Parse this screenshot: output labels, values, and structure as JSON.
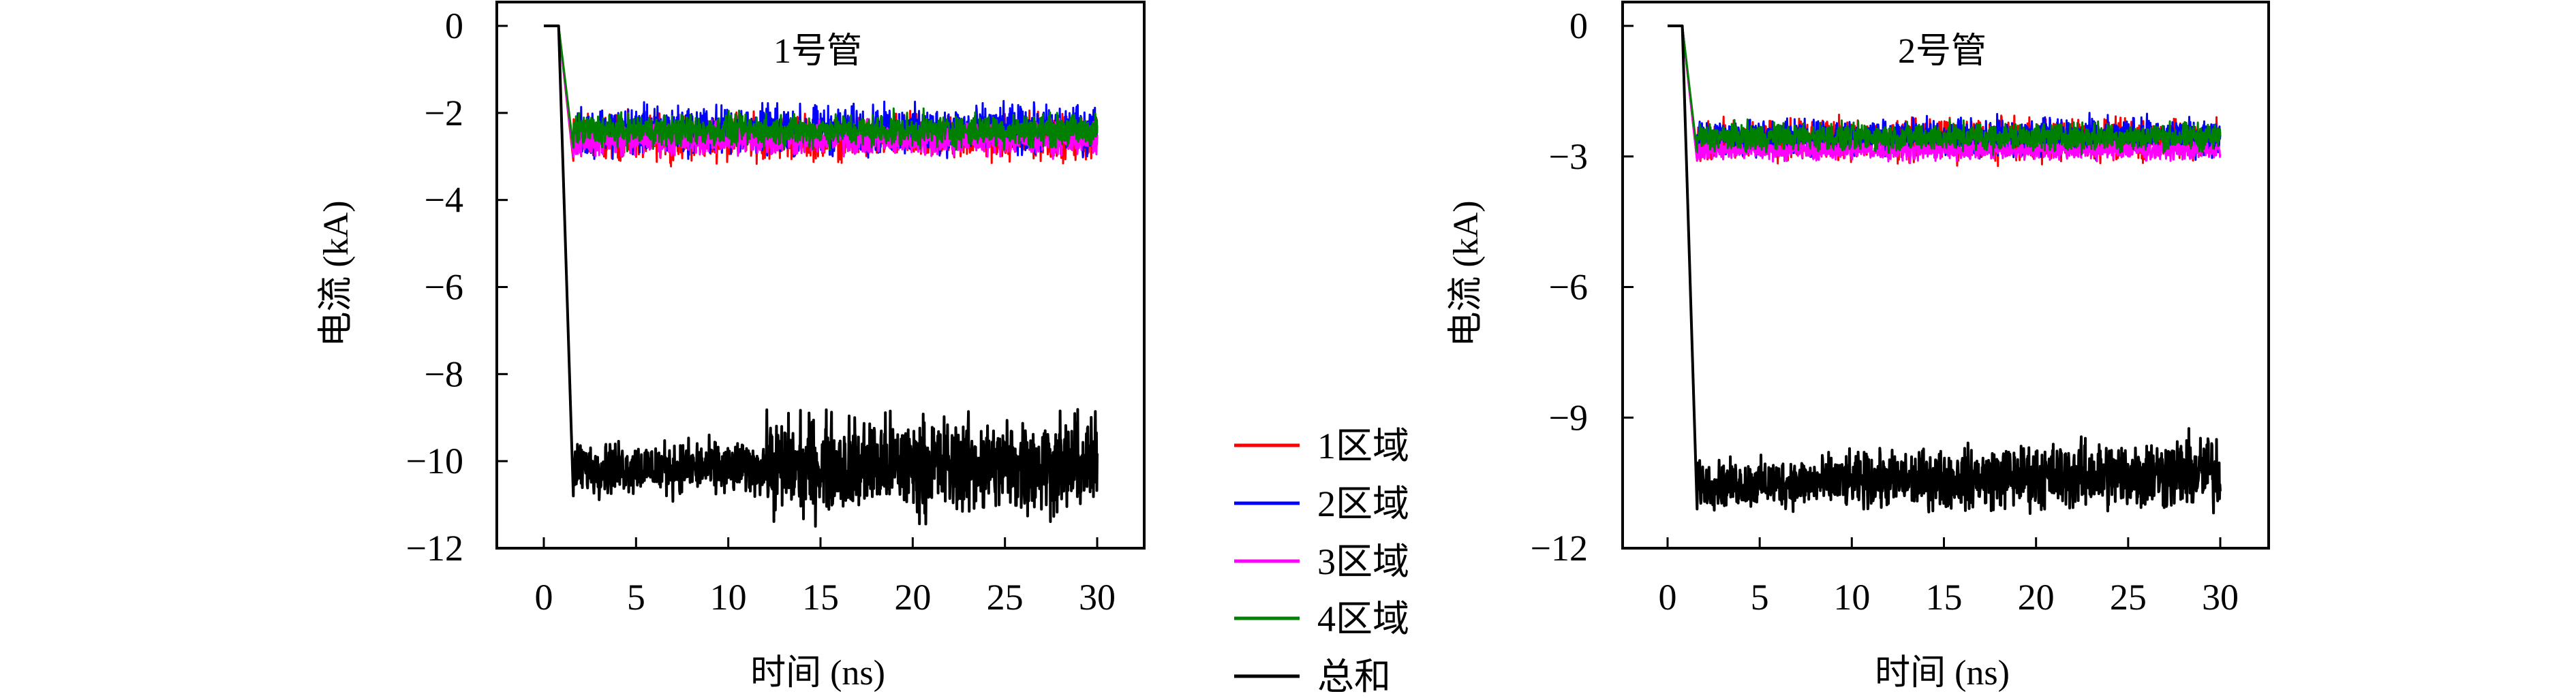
{
  "legend": {
    "placement": "center-between-panels",
    "items": [
      {
        "label": "1区域",
        "color": "#ff0000"
      },
      {
        "label": "2区域",
        "color": "#0000ff"
      },
      {
        "label": "3区域",
        "color": "#ff00ff"
      },
      {
        "label": "4区域",
        "color": "#008000"
      },
      {
        "label": "总和",
        "color": "#000000"
      }
    ]
  },
  "chart_data": [
    {
      "type": "line",
      "title": "1号管",
      "xlabel": "时间 (ns)",
      "ylabel": "电流 (kA)",
      "xlim": [
        -2.5,
        32.5
      ],
      "ylim": [
        -12,
        0.6
      ],
      "xticks": [
        "0",
        "5",
        "10",
        "15",
        "20",
        "25",
        "30"
      ],
      "yticks": [
        "0",
        "−2",
        "−4",
        "−6",
        "−8",
        "−10",
        "−12"
      ],
      "ytick_values": [
        0,
        -2,
        -4,
        -6,
        -8,
        -10,
        -12
      ],
      "grid": false,
      "series": [
        {
          "name": "1区域",
          "color": "#ff0000",
          "x": [
            0,
            0.8,
            1.6,
            10,
            20,
            30
          ],
          "y": [
            0,
            0,
            -2.5,
            -2.5,
            -2.5,
            -2.5
          ],
          "noise_band": [
            -3.1,
            -2.0
          ]
        },
        {
          "name": "2区域",
          "color": "#0000ff",
          "x": [
            0,
            0.8,
            1.6,
            10,
            20,
            30
          ],
          "y": [
            0,
            0,
            -2.5,
            -2.5,
            -2.5,
            -2.5
          ],
          "noise_band": [
            -3.0,
            -1.8
          ]
        },
        {
          "name": "3区域",
          "color": "#ff00ff",
          "x": [
            0,
            0.8,
            1.6,
            10,
            20,
            30
          ],
          "y": [
            0,
            0,
            -2.6,
            -2.6,
            -2.6,
            -2.6
          ],
          "noise_band": [
            -3.0,
            -2.2
          ]
        },
        {
          "name": "4区域",
          "color": "#008000",
          "x": [
            0,
            0.8,
            1.6,
            10,
            20,
            30
          ],
          "y": [
            0,
            0,
            -2.4,
            -2.4,
            -2.4,
            -2.4
          ],
          "noise_band": [
            -2.8,
            -2.0
          ]
        },
        {
          "name": "总和",
          "color": "#000000",
          "x": [
            0,
            0.8,
            1.6,
            10,
            12,
            20,
            30
          ],
          "y": [
            0,
            0,
            -10.1,
            -10.1,
            -10.1,
            -10.1,
            -10.1
          ],
          "noise_band_before_12ns": [
            -10.8,
            -9.5
          ],
          "noise_band_after_12ns": [
            -11.3,
            -8.9
          ]
        }
      ]
    },
    {
      "type": "line",
      "title": "2号管",
      "xlabel": "时间 (ns)",
      "ylabel": "电流 (kA)",
      "xlim": [
        -2.5,
        32.5
      ],
      "ylim": [
        -12,
        0.6
      ],
      "xticks": [
        "0",
        "5",
        "10",
        "15",
        "20",
        "25",
        "30"
      ],
      "yticks": [
        "0",
        "−3",
        "−6",
        "−9",
        "−12"
      ],
      "ytick_values": [
        0,
        -3,
        -6,
        -9,
        -12
      ],
      "grid": false,
      "series": [
        {
          "name": "1区域",
          "color": "#ff0000",
          "x": [
            0,
            0.8,
            1.6,
            10,
            20,
            30
          ],
          "y": [
            0,
            0,
            -2.55,
            -2.55,
            -2.55,
            -2.55
          ],
          "noise_band": [
            -3.1,
            -2.1
          ]
        },
        {
          "name": "2区域",
          "color": "#0000ff",
          "x": [
            0,
            0.8,
            1.6,
            10,
            20,
            30
          ],
          "y": [
            0,
            0,
            -2.55,
            -2.55,
            -2.55,
            -2.55
          ],
          "noise_band": [
            -3.0,
            -2.1
          ]
        },
        {
          "name": "3区域",
          "color": "#ff00ff",
          "x": [
            0,
            0.8,
            1.6,
            10,
            20,
            30
          ],
          "y": [
            0,
            0,
            -2.7,
            -2.7,
            -2.7,
            -2.7
          ],
          "noise_band": [
            -3.1,
            -2.6
          ]
        },
        {
          "name": "4区域",
          "color": "#008000",
          "x": [
            0,
            0.8,
            1.6,
            10,
            20,
            30
          ],
          "y": [
            0,
            0,
            -2.45,
            -2.45,
            -2.45,
            -2.45
          ],
          "noise_band": [
            -2.9,
            -2.2
          ]
        },
        {
          "name": "总和",
          "color": "#000000",
          "x": [
            0,
            0.8,
            1.6,
            10,
            20,
            30
          ],
          "y": [
            0,
            0,
            -10.5,
            -10.4,
            -10.3,
            -10.2
          ],
          "noise_band_start": [
            -11.1,
            -10.0
          ],
          "noise_band_end": [
            -11.2,
            -9.3
          ]
        }
      ]
    }
  ]
}
